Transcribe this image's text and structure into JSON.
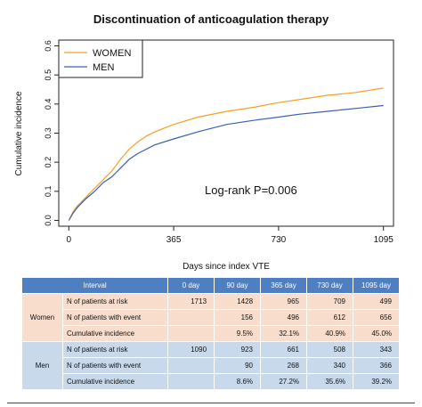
{
  "chart_data": {
    "type": "line",
    "title": "Discontinuation of anticoagulation therapy",
    "xlabel": "Days since index VTE",
    "ylabel": "Cumulative incidence",
    "xlim": [
      -35,
      1130
    ],
    "ylim": [
      -0.02,
      0.62
    ],
    "x_ticks": [
      0,
      365,
      730,
      1095
    ],
    "x_tick_labels": [
      "0",
      "365",
      "730",
      "1095"
    ],
    "y_ticks": [
      0.0,
      0.1,
      0.2,
      0.3,
      0.4,
      0.5,
      0.6
    ],
    "y_tick_labels": [
      "0.0",
      "0.1",
      "0.2",
      "0.3",
      "0.4",
      "0.5",
      "0.6"
    ],
    "grid": false,
    "legend_position": "top-left",
    "annotation": "Log-rank P=0.006",
    "series": [
      {
        "name": "WOMEN",
        "color": "#f4a020",
        "x": [
          0,
          15,
          30,
          60,
          90,
          120,
          150,
          180,
          210,
          240,
          270,
          300,
          365,
          450,
          550,
          650,
          730,
          800,
          900,
          1000,
          1095
        ],
        "y": [
          0.0,
          0.03,
          0.05,
          0.08,
          0.11,
          0.14,
          0.17,
          0.21,
          0.245,
          0.27,
          0.29,
          0.305,
          0.33,
          0.355,
          0.375,
          0.39,
          0.405,
          0.415,
          0.43,
          0.44,
          0.455
        ]
      },
      {
        "name": "MEN",
        "color": "#3a5fb0",
        "x": [
          0,
          15,
          30,
          60,
          90,
          120,
          150,
          180,
          210,
          240,
          270,
          300,
          365,
          450,
          550,
          650,
          730,
          800,
          900,
          1000,
          1095
        ],
        "y": [
          0.0,
          0.025,
          0.045,
          0.075,
          0.1,
          0.13,
          0.15,
          0.18,
          0.21,
          0.23,
          0.245,
          0.26,
          0.28,
          0.305,
          0.33,
          0.345,
          0.355,
          0.365,
          0.375,
          0.385,
          0.395
        ]
      }
    ]
  },
  "table": {
    "headers": [
      "Interval",
      "0 day",
      "90 day",
      "365 day",
      "730 day",
      "1095 day"
    ],
    "groups": [
      {
        "name": "Women",
        "rows": [
          {
            "label": "N of patients at risk",
            "values": [
              "1713",
              "1428",
              "965",
              "709",
              "499"
            ]
          },
          {
            "label": "N of patients with event",
            "values": [
              "",
              "156",
              "496",
              "612",
              "656"
            ]
          },
          {
            "label": "Cumulative incidence",
            "values": [
              "",
              "9.5%",
              "32.1%",
              "40.9%",
              "45.0%"
            ]
          }
        ]
      },
      {
        "name": "Men",
        "rows": [
          {
            "label": "N of patients at risk",
            "values": [
              "1090",
              "923",
              "661",
              "508",
              "343"
            ]
          },
          {
            "label": "N of patients with event",
            "values": [
              "",
              "90",
              "268",
              "340",
              "366"
            ]
          },
          {
            "label": "Cumulative incidence",
            "values": [
              "",
              "8.6%",
              "27.2%",
              "35.6%",
              "39.2%"
            ]
          }
        ]
      }
    ]
  }
}
